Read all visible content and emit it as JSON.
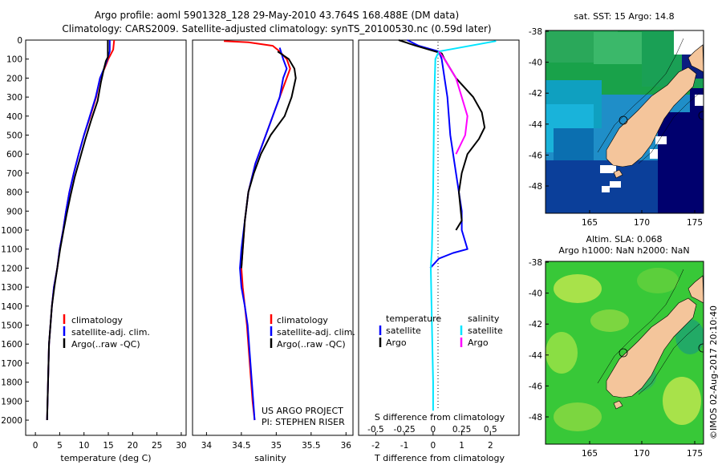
{
  "header": {
    "line1": "Argo profile: aoml 5901328_128 29-May-2010 43.764S 168.488E (DM data)",
    "line2": "Climatology: CARS2009. Satellite-adjusted climatology: synTS_20100530.nc (0.59d later)"
  },
  "colors": {
    "climatology": "#ff0000",
    "satellite": "#0000ff",
    "argo": "#000000",
    "argo_salinity": "#ff00ff",
    "satellite_salinity": "#00e5ff",
    "land": "#f4c59b",
    "sst_deep": "#00006e",
    "sla_green": "#38c838"
  },
  "panels": {
    "temperature": {
      "xlabel": "temperature (deg C)",
      "legend": [
        "climatology",
        "satellite-adj. clim.",
        "Argo(..raw -QC)"
      ]
    },
    "salinity": {
      "xlabel": "salinity",
      "legend": [
        "climatology",
        "satellite-adj. clim.",
        "Argo(..raw -QC)"
      ],
      "credit1": "US ARGO PROJECT",
      "credit2": "PI: STEPHEN RISER"
    },
    "difference": {
      "top_label": "S difference from climatology",
      "xlabel": "T difference from climatology",
      "legend_temp_title": "temperature",
      "legend_sal_title": "salinity",
      "legend_temp_items": [
        "satellite",
        "Argo"
      ],
      "legend_sal_items": [
        "satellite",
        "Argo"
      ]
    }
  },
  "maps": {
    "sst_title": "sat. SST: 15 Argo: 14.8",
    "sla_title1": "Altim. SLA: 0.068",
    "sla_title2": "Argo h1000: NaN h2000: NaN",
    "stamp": "©IMOS 02-Aug-2017 20:10:40",
    "lat_ticks": [
      "-38",
      "-40",
      "-42",
      "-44",
      "-46",
      "-48"
    ],
    "lon_ticks": [
      "165",
      "170",
      "175"
    ]
  },
  "chart_data": [
    {
      "type": "line",
      "name": "temperature profile",
      "xlabel": "temperature (deg C)",
      "ylabel": "",
      "xlim": [
        -2,
        31
      ],
      "ylim": [
        0,
        2080
      ],
      "y_reversed": true,
      "xticks": [
        "0",
        "5",
        "10",
        "15",
        "20",
        "25",
        "30"
      ],
      "yticks": [
        "0",
        "100",
        "200",
        "300",
        "400",
        "500",
        "600",
        "700",
        "800",
        "900",
        "1000",
        "1100",
        "1200",
        "1300",
        "1400",
        "1500",
        "1600",
        "1700",
        "1800",
        "1900",
        "2000"
      ],
      "series": [
        {
          "name": "climatology",
          "color": "#ff0000",
          "points": [
            [
              16.2,
              0
            ],
            [
              16.0,
              50
            ],
            [
              15.0,
              100
            ],
            [
              14.2,
              150
            ],
            [
              13.3,
              200
            ],
            [
              12.5,
              300
            ],
            [
              11.3,
              400
            ],
            [
              10.0,
              500
            ],
            [
              8.9,
              600
            ],
            [
              7.9,
              700
            ],
            [
              7.0,
              800
            ],
            [
              6.3,
              900
            ],
            [
              5.7,
              1000
            ],
            [
              5.0,
              1100
            ],
            [
              4.5,
              1200
            ],
            [
              3.8,
              1300
            ],
            [
              3.4,
              1400
            ],
            [
              3.1,
              1500
            ],
            [
              2.8,
              1600
            ],
            [
              2.7,
              1700
            ],
            [
              2.6,
              1800
            ],
            [
              2.5,
              1900
            ],
            [
              2.4,
              2000
            ]
          ]
        },
        {
          "name": "satellite-adj. clim.",
          "color": "#0000ff",
          "points": [
            [
              15.3,
              0
            ],
            [
              15.3,
              60
            ],
            [
              14.8,
              100
            ],
            [
              14.1,
              150
            ],
            [
              13.3,
              200
            ],
            [
              12.4,
              300
            ],
            [
              11.2,
              400
            ],
            [
              10.0,
              500
            ],
            [
              8.9,
              600
            ],
            [
              7.9,
              700
            ],
            [
              7.0,
              800
            ],
            [
              6.3,
              900
            ],
            [
              5.7,
              1000
            ],
            [
              5.0,
              1100
            ],
            [
              4.5,
              1200
            ],
            [
              3.8,
              1300
            ],
            [
              3.4,
              1400
            ],
            [
              3.1,
              1500
            ],
            [
              2.8,
              1600
            ],
            [
              2.7,
              1700
            ],
            [
              2.6,
              1800
            ],
            [
              2.5,
              1900
            ],
            [
              2.4,
              2000
            ]
          ]
        },
        {
          "name": "Argo(..raw -QC)",
          "color": "#000000",
          "points": [
            [
              14.9,
              0
            ],
            [
              14.9,
              90
            ],
            [
              14.5,
              110
            ],
            [
              14.1,
              150
            ],
            [
              13.5,
              220
            ],
            [
              12.8,
              320
            ],
            [
              11.5,
              420
            ],
            [
              10.3,
              520
            ],
            [
              9.2,
              620
            ],
            [
              8.1,
              720
            ],
            [
              7.2,
              820
            ],
            [
              6.4,
              920
            ],
            [
              5.8,
              1000
            ],
            [
              5.1,
              1100
            ],
            [
              4.5,
              1200
            ],
            [
              3.9,
              1300
            ],
            [
              3.4,
              1400
            ],
            [
              3.1,
              1500
            ],
            [
              2.8,
              1600
            ],
            [
              2.7,
              1700
            ],
            [
              2.6,
              1800
            ],
            [
              2.5,
              1900
            ],
            [
              2.4,
              2000
            ]
          ]
        }
      ]
    },
    {
      "type": "line",
      "name": "salinity profile",
      "xlabel": "salinity",
      "ylabel": "",
      "xlim": [
        33.8,
        36.1
      ],
      "ylim": [
        0,
        2080
      ],
      "y_reversed": true,
      "xticks": [
        "34",
        "34.5",
        "35",
        "35.5",
        "36"
      ],
      "series": [
        {
          "name": "climatology",
          "color": "#ff0000",
          "points": [
            [
              34.25,
              5
            ],
            [
              34.6,
              12
            ],
            [
              34.95,
              30
            ],
            [
              35.05,
              60
            ],
            [
              35.15,
              100
            ],
            [
              35.2,
              150
            ],
            [
              35.15,
              200
            ],
            [
              35.05,
              300
            ],
            [
              34.95,
              400
            ],
            [
              34.8,
              550
            ],
            [
              34.7,
              650
            ],
            [
              34.6,
              800
            ],
            [
              34.55,
              950
            ],
            [
              34.52,
              1100
            ],
            [
              34.5,
              1200
            ],
            [
              34.52,
              1300
            ],
            [
              34.55,
              1400
            ],
            [
              34.58,
              1500
            ],
            [
              34.62,
              1700
            ],
            [
              34.66,
              1900
            ],
            [
              34.69,
              2000
            ]
          ]
        },
        {
          "name": "satellite-adj. clim.",
          "color": "#0000ff",
          "points": [
            [
              35.05,
              40
            ],
            [
              35.1,
              100
            ],
            [
              35.15,
              150
            ],
            [
              35.1,
              200
            ],
            [
              35.05,
              300
            ],
            [
              34.95,
              400
            ],
            [
              34.8,
              550
            ],
            [
              34.7,
              650
            ],
            [
              34.6,
              800
            ],
            [
              34.55,
              950
            ],
            [
              34.5,
              1100
            ],
            [
              34.48,
              1200
            ],
            [
              34.5,
              1300
            ],
            [
              34.55,
              1400
            ],
            [
              34.59,
              1500
            ],
            [
              34.63,
              1700
            ],
            [
              34.67,
              1900
            ],
            [
              34.69,
              2000
            ]
          ]
        },
        {
          "name": "Argo(..raw -QC)",
          "color": "#000000",
          "points": [
            [
              35.02,
              60
            ],
            [
              35.18,
              100
            ],
            [
              35.26,
              150
            ],
            [
              35.28,
              200
            ],
            [
              35.22,
              300
            ],
            [
              35.12,
              400
            ],
            [
              34.92,
              500
            ],
            [
              34.78,
              600
            ],
            [
              34.68,
              700
            ],
            [
              34.6,
              800
            ],
            [
              34.55,
              950
            ],
            [
              34.52,
              1100
            ],
            [
              34.5,
              1200
            ]
          ]
        }
      ]
    },
    {
      "type": "line",
      "name": "difference from climatology",
      "xlabel": "T difference from climatology",
      "x2label": "S difference from climatology",
      "xlim": [
        -2.6,
        3.0
      ],
      "x2lim": [
        -0.65,
        0.75
      ],
      "ylim": [
        0,
        2080
      ],
      "y_reversed": true,
      "xticks": [
        "-2",
        "-1",
        "0",
        "1",
        "2"
      ],
      "x2ticks": [
        "-0.5",
        "-0.25",
        "0",
        "0.25",
        "0.5"
      ],
      "series": [
        {
          "name": "temperature satellite",
          "axis": "T",
          "color": "#0000ff",
          "points": [
            [
              -0.9,
              0
            ],
            [
              -0.5,
              30
            ],
            [
              0.2,
              60
            ],
            [
              0.3,
              100
            ],
            [
              0.4,
              200
            ],
            [
              0.5,
              300
            ],
            [
              0.6,
              500
            ],
            [
              0.8,
              700
            ],
            [
              1.0,
              900
            ],
            [
              1.0,
              1000
            ],
            [
              1.2,
              1100
            ],
            [
              0.7,
              1120
            ],
            [
              0.2,
              1150
            ],
            [
              -0.1,
              1200
            ]
          ]
        },
        {
          "name": "temperature Argo",
          "axis": "T",
          "color": "#000000",
          "points": [
            [
              -1.2,
              0
            ],
            [
              -0.6,
              30
            ],
            [
              0.3,
              70
            ],
            [
              0.4,
              100
            ],
            [
              0.8,
              200
            ],
            [
              1.4,
              300
            ],
            [
              1.7,
              380
            ],
            [
              1.8,
              460
            ],
            [
              1.6,
              520
            ],
            [
              1.2,
              600
            ],
            [
              1.0,
              700
            ],
            [
              0.9,
              800
            ],
            [
              1.0,
              950
            ],
            [
              0.8,
              1000
            ]
          ]
        },
        {
          "name": "salinity satellite",
          "axis": "S",
          "color": "#00e5ff",
          "points": [
            [
              0.55,
              5
            ],
            [
              0.05,
              60
            ],
            [
              0.02,
              100
            ],
            [
              0.01,
              300
            ],
            [
              0.0,
              800
            ],
            [
              -0.01,
              1100
            ],
            [
              -0.02,
              1200
            ],
            [
              -0.01,
              1500
            ],
            [
              0.0,
              1800
            ],
            [
              0.0,
              1950
            ]
          ]
        },
        {
          "name": "salinity Argo",
          "axis": "S",
          "color": "#ff00ff",
          "points": [
            [
              0.05,
              60
            ],
            [
              0.1,
              100
            ],
            [
              0.2,
              200
            ],
            [
              0.25,
              300
            ],
            [
              0.3,
              400
            ],
            [
              0.28,
              500
            ],
            [
              0.2,
              600
            ]
          ]
        }
      ]
    }
  ]
}
